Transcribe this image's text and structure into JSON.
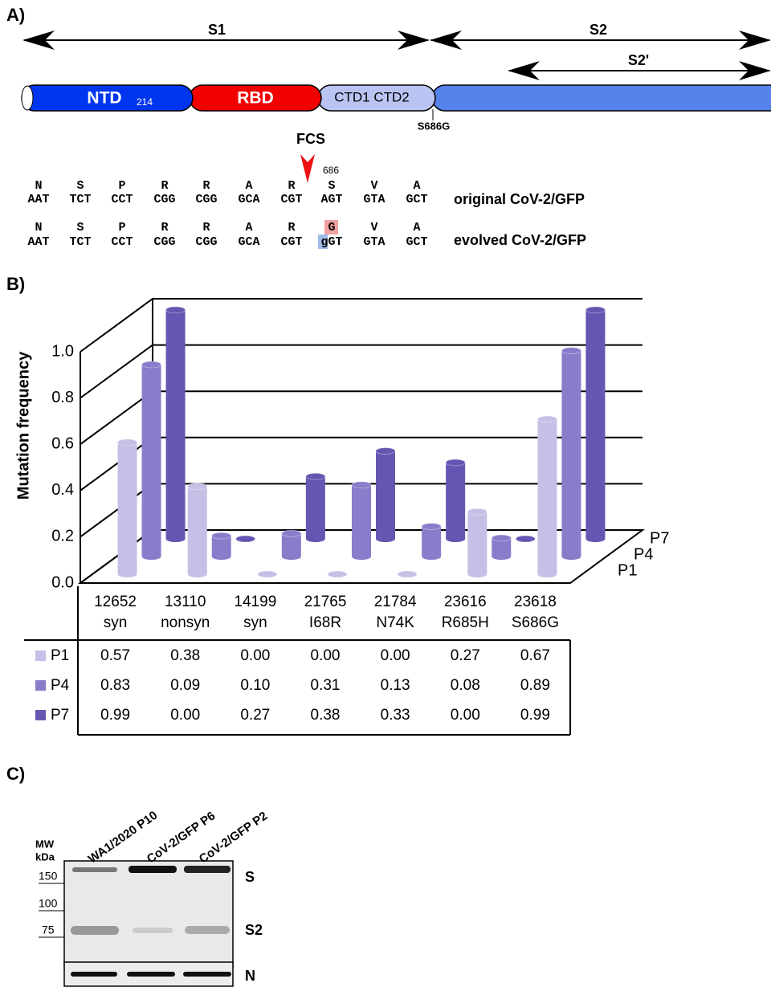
{
  "panel_labels": [
    "A)",
    "B)",
    "C)"
  ],
  "panel_a": {
    "arrows": [
      "S1",
      "S2",
      "S2'"
    ],
    "domains": [
      "NTD",
      "RBD",
      "CTD1 CTD2"
    ],
    "ntd_number": "214",
    "site": "S686G",
    "fcs": "FCS",
    "position": "686",
    "original": {
      "aa": [
        "N",
        "S",
        "P",
        "R",
        "R",
        "A",
        "R",
        "S",
        "V",
        "A"
      ],
      "codons": [
        "AAT",
        "TCT",
        "CCT",
        "CGG",
        "CGG",
        "GCA",
        "CGT",
        "AGT",
        "GTA",
        "GCT"
      ],
      "label": "original CoV-2/GFP"
    },
    "evolved": {
      "aa": [
        "N",
        "S",
        "P",
        "R",
        "R",
        "A",
        "R",
        "G",
        "V",
        "A"
      ],
      "codons": [
        "AAT",
        "TCT",
        "CCT",
        "CGG",
        "CGG",
        "GCA",
        "CGT",
        "gGT",
        "GTA",
        "GCT"
      ],
      "label": "evolved CoV-2/GFP"
    }
  },
  "chart_data": {
    "type": "bar3d",
    "y_label": "Mutation frequency",
    "categories": [
      "12652",
      "13110",
      "14199",
      "21765",
      "21784",
      "23616",
      "23618"
    ],
    "subcategories": [
      "syn",
      "nonsyn",
      "syn",
      "I68R",
      "N74K",
      "R685H",
      "S686G"
    ],
    "series": [
      {
        "name": "P1",
        "color": "#c6bfe6",
        "values": [
          0.57,
          0.38,
          0,
          0,
          0,
          0.27,
          0.67
        ],
        "value_labels": [
          "0.57",
          "0.38",
          "0.00",
          "0.00",
          "0.00",
          "0.27",
          "0.67"
        ]
      },
      {
        "name": "P4",
        "color": "#8a7ccb",
        "values": [
          0.83,
          0.09,
          0.1,
          0.31,
          0.13,
          0.08,
          0.89
        ],
        "value_labels": [
          "0.83",
          "0.09",
          "0.10",
          "0.31",
          "0.13",
          "0.08",
          "0.89"
        ]
      },
      {
        "name": "P7",
        "color": "#6656b2",
        "values": [
          0.99,
          0,
          0.27,
          0.38,
          0.33,
          0,
          0.99
        ],
        "value_labels": [
          "0.99",
          "0.00",
          "0.27",
          "0.38",
          "0.33",
          "0.00",
          "0.99"
        ]
      }
    ],
    "ylim": [
      0,
      1.0
    ],
    "yticks": [
      {
        "value": 0,
        "label": "0.0"
      },
      {
        "value": 0.2,
        "label": "0.2"
      },
      {
        "value": 0.4,
        "label": "0.4"
      },
      {
        "value": 0.6,
        "label": "0.6"
      },
      {
        "value": 0.8,
        "label": "0.8"
      },
      {
        "value": 1,
        "label": "1.0"
      }
    ],
    "grid": true
  },
  "panel_c": {
    "lanes": [
      "WA1/2020 P10",
      "CoV-2/GFP P6",
      "CoV-2/GFP P2"
    ],
    "mw_title": [
      "MW",
      "kDa"
    ],
    "markers": [
      150,
      100,
      75
    ],
    "bands": [
      "S",
      "S2",
      "N"
    ]
  }
}
